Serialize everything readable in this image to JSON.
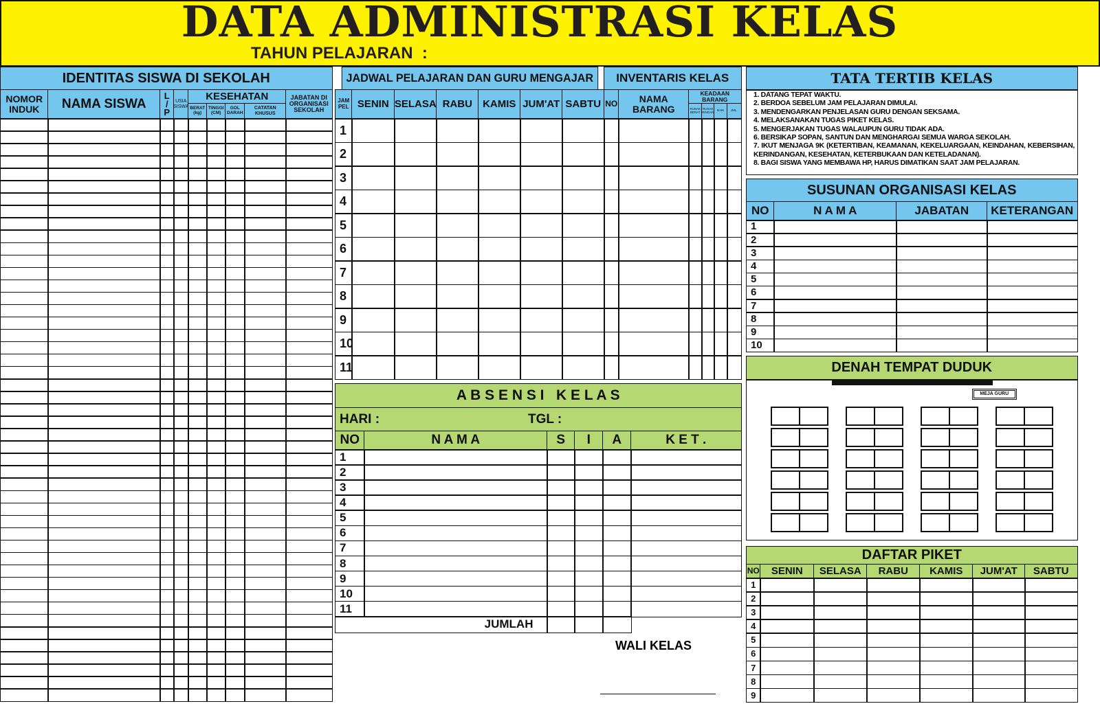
{
  "title": "DATA ADMINISTRASI KELAS",
  "subtitle": "TAHUN PELAJARAN  :",
  "colors": {
    "title_bg": "#fff200",
    "header_blue": "#74c6ef",
    "header_green": "#b6d872"
  },
  "identitas": {
    "title": "IDENTITAS SISWA DI SEKOLAH",
    "columns": {
      "nomor_induk": "NOMOR INDUK",
      "nama_siswa": "NAMA SISWA",
      "lp": "L / P",
      "usia": "USIA SISWA",
      "kesehatan": "KESEHATAN",
      "berat": "BERAT (kg)",
      "tinggi": "TINGGI (CM)",
      "gol_darah": "GOL DARAH",
      "catatan": "CATATAN KHUSUS",
      "jabatan": "JABATAN DI ORGANISASI SEKOLAH"
    }
  },
  "jadwal": {
    "title": "JADWAL PELAJARAN DAN GURU MENGAJAR",
    "jam": "JAM PEL",
    "days": [
      "SENIN",
      "SELASA",
      "RABU",
      "KAMIS",
      "JUM'AT",
      "SABTU"
    ],
    "rows": [
      "1",
      "2",
      "3",
      "4",
      "5",
      "6",
      "7",
      "8",
      "9",
      "10",
      "11"
    ]
  },
  "inventaris": {
    "title": "INVENTARIS KELAS",
    "no": "NO",
    "nama": "NAMA BARANG",
    "keadaan": "KEADAAN BARANG",
    "sub": [
      "RUSAK BERAT",
      "RUSAK RINGAN",
      "BAIK",
      "JML."
    ]
  },
  "tata_tertib": {
    "title": "TATA TERTIB KELAS",
    "rules": [
      "1. DATANG TEPAT WAKTU.",
      "2. BERDOA SEBELUM JAM PELAJARAN DIMULAI.",
      "3. MENDENGARKAN PENJELASAN GURU DENGAN SEKSAMA.",
      "4. MELAKSANAKAN TUGAS PIKET KELAS.",
      "5. MENGERJAKAN TUGAS WALAUPUN GURU TIDAK ADA.",
      "6. BERSIKAP SOPAN, SANTUN DAN MENGHARGAI SEMUA WARGA SEKOLAH.",
      "7. IKUT MENJAGA 9K (KETERTIBAN, KEAMANAN, KEKELUARGAAN, KEINDAHAN, KEBERSIHAN, KERINDANGAN, KESEHATAN, KETERBUKAAN DAN KETELADANAN).",
      "8. BAGI SISWA YANG MEMBAWA HP, HARUS DIMATIKAN SAAT JAM PELAJARAN."
    ]
  },
  "organisasi": {
    "title": "SUSUNAN ORGANISASI KELAS",
    "columns": [
      "NO",
      "N A M A",
      "JABATAN",
      "KETERANGAN"
    ],
    "rows": [
      "1",
      "2",
      "3",
      "4",
      "5",
      "6",
      "7",
      "8",
      "9",
      "10"
    ]
  },
  "absensi": {
    "title": "A B S E N S I   K E L A S",
    "hari": "HARI  :",
    "tgl": "TGL  :",
    "columns": [
      "NO",
      "N A M A",
      "S",
      "I",
      "A",
      "K E T ."
    ],
    "rows": [
      "1",
      "2",
      "3",
      "4",
      "5",
      "6",
      "7",
      "8",
      "9",
      "10",
      "11"
    ],
    "jumlah": "JUMLAH"
  },
  "wali_kelas": "WALI KELAS",
  "denah": {
    "title": "DENAH TEMPAT DUDUK",
    "meja_guru": "MEJA GURU"
  },
  "piket": {
    "title": "DAFTAR PIKET",
    "columns": [
      "NO",
      "SENIN",
      "SELASA",
      "RABU",
      "KAMIS",
      "JUM'AT",
      "SABTU"
    ],
    "rows": [
      "1",
      "2",
      "3",
      "4",
      "5",
      "6",
      "7",
      "8",
      "9"
    ]
  }
}
